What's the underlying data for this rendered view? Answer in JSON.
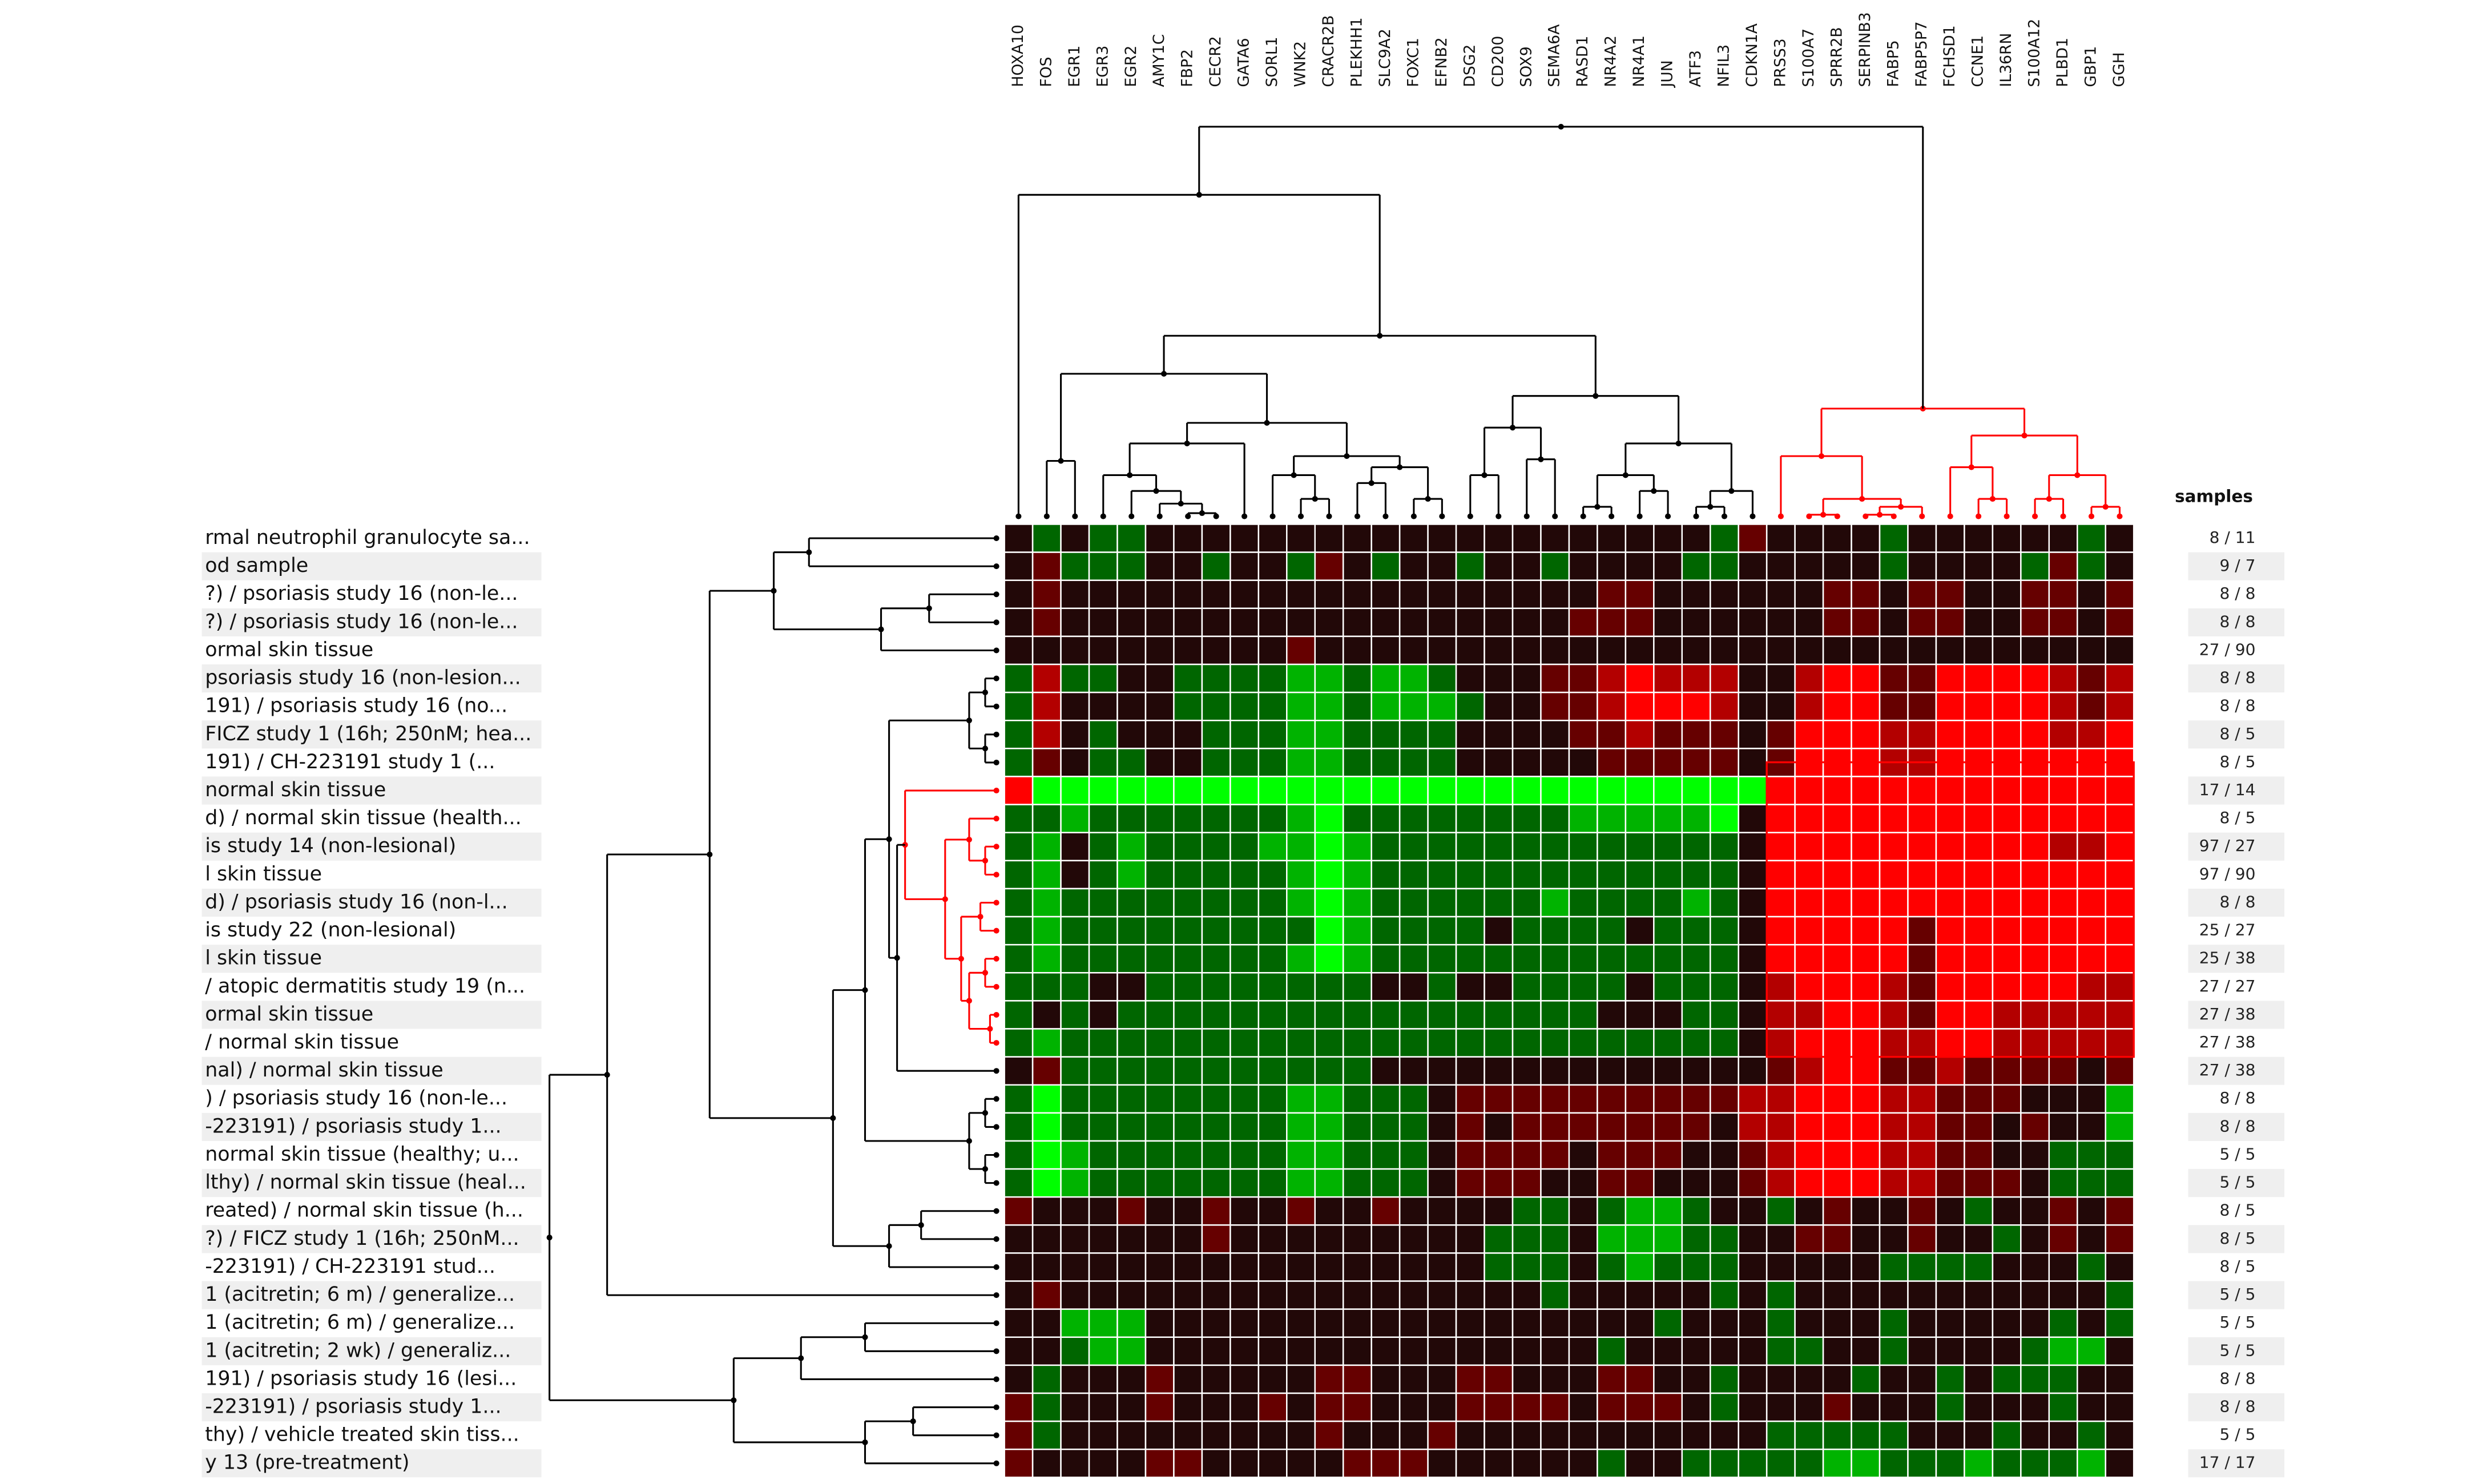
{
  "chart_data": {
    "type": "heatmap",
    "categories": [
      "HOXA10",
      "FOS",
      "EGR1",
      "EGR3",
      "EGR2",
      "AMY1C",
      "FBP2",
      "CECR2",
      "GATA6",
      "SORL1",
      "WNK2",
      "CRACR2B",
      "PLEKHH1",
      "SLC9A2",
      "FOXC1",
      "EFNB2",
      "DSG2",
      "CD200",
      "SOX9",
      "SEMA6A",
      "RASD1",
      "NR4A2",
      "NR4A1",
      "JUN",
      "ATF3",
      "NFIL3",
      "CDKN1A",
      "PRSS3",
      "S100A7",
      "SPRR2B",
      "SERPINB3",
      "FABP5",
      "FABP5P7",
      "FCHSD1",
      "CCNE1",
      "IL36RN",
      "S100A12",
      "PLBD1",
      "GBP1",
      "GGH"
    ],
    "rows": [
      "rmal neutrophil granulocyte sa...",
      "od sample",
      "?) / psoriasis study 16 (non-le...",
      "?) / psoriasis study 16 (non-le...",
      "ormal skin tissue",
      "psoriasis study 16 (non-lesion...",
      "191) / psoriasis study 16 (no...",
      "FICZ study 1 (16h; 250nM; hea...",
      "191) / CH-223191 study 1 (...",
      "normal skin tissue",
      "d) / normal skin tissue (health...",
      "is study 14 (non-lesional)",
      "l skin tissue",
      "d) / psoriasis study 16 (non-l...",
      "is study 22 (non-lesional)",
      "l skin tissue",
      "/ atopic dermatitis study 19 (n...",
      "ormal skin tissue",
      "/ normal skin tissue",
      "nal) / normal skin tissue",
      ") / psoriasis study 16 (non-le...",
      "-223191) / psoriasis study 1...",
      "normal skin tissue (healthy; u...",
      "lthy) / normal skin tissue (heal...",
      "reated) / normal skin tissue (h...",
      "?) / FICZ study 1 (16h; 250nM...",
      "-223191) / CH-223191 stud...",
      "1 (acitretin; 6 m) / generalize...",
      "1 (acitretin; 6 m) / generalize...",
      "1 (acitretin; 2 wk) / generaliz...",
      "191) / psoriasis study 16 (lesi...",
      "-223191) / psoriasis study 1...",
      "thy) / vehicle treated skin tiss...",
      "y 13 (pre-treatment)"
    ],
    "samples_header": "samples",
    "samples": [
      "8 / 11",
      "9 / 7",
      "8 / 8",
      "8 / 8",
      "27 / 90",
      "8 / 8",
      "8 / 8",
      "8 / 5",
      "8 / 5",
      "17 / 14",
      "8 / 5",
      "97 / 27",
      "97 / 90",
      "8 / 8",
      "25 / 27",
      "25 / 38",
      "27 / 27",
      "27 / 38",
      "27 / 38",
      "27 / 38",
      "8 / 8",
      "8 / 8",
      "5 / 5",
      "5 / 5",
      "8 / 5",
      "8 / 5",
      "8 / 5",
      "5 / 5",
      "5 / 5",
      "5 / 5",
      "8 / 8",
      "8 / 8",
      "5 / 5",
      "17 / 17"
    ],
    "zlim": [
      -3,
      3
    ],
    "colors": {
      "negative": "#00ff00",
      "positive": "#ff0000"
    },
    "values": [
      [
        0,
        -1,
        0,
        -1,
        -1,
        0,
        0,
        0,
        0,
        0,
        0,
        0,
        0,
        0,
        0,
        0,
        0,
        0,
        0,
        0,
        0,
        0,
        0,
        0,
        0,
        -1,
        1,
        0,
        0,
        0,
        0,
        -1,
        0,
        0,
        0,
        0,
        0,
        0,
        -1,
        0
      ],
      [
        0,
        1,
        -1,
        -1,
        -1,
        0,
        0,
        -1,
        0,
        0,
        -1,
        1,
        0,
        -1,
        0,
        0,
        -1,
        0,
        0,
        -1,
        0,
        0,
        0,
        0,
        -1,
        -1,
        0,
        0,
        0,
        0,
        0,
        -1,
        0,
        0,
        0,
        0,
        -1,
        1,
        -1,
        0
      ],
      [
        0,
        1,
        0,
        0,
        0,
        0,
        0,
        0,
        0,
        0,
        0,
        0,
        0,
        0,
        0,
        0,
        0,
        0,
        0,
        0,
        0,
        1,
        1,
        0,
        0,
        0,
        0,
        0,
        0,
        1,
        1,
        0,
        1,
        1,
        0,
        0,
        1,
        1,
        0,
        1
      ],
      [
        0,
        1,
        0,
        0,
        0,
        0,
        0,
        0,
        0,
        0,
        0,
        0,
        0,
        0,
        0,
        0,
        0,
        0,
        0,
        0,
        1,
        1,
        1,
        0,
        0,
        0,
        0,
        0,
        0,
        1,
        1,
        0,
        1,
        1,
        0,
        0,
        1,
        1,
        0,
        1
      ],
      [
        0,
        0,
        0,
        0,
        0,
        0,
        0,
        0,
        0,
        0,
        1,
        0,
        0,
        0,
        0,
        0,
        0,
        0,
        0,
        0,
        0,
        0,
        0,
        0,
        0,
        0,
        0,
        0,
        0,
        0,
        0,
        0,
        0,
        0,
        0,
        0,
        0,
        0,
        0,
        0
      ],
      [
        -1,
        2,
        -1,
        -1,
        0,
        0,
        -1,
        -1,
        -1,
        -1,
        -2,
        -2,
        -1,
        -2,
        -2,
        -1,
        0,
        0,
        0,
        1,
        1,
        2,
        3,
        2,
        2,
        2,
        0,
        0,
        2,
        3,
        3,
        1,
        1,
        3,
        3,
        3,
        3,
        2,
        1,
        2
      ],
      [
        -1,
        2,
        0,
        0,
        0,
        0,
        -1,
        -1,
        -1,
        -1,
        -2,
        -2,
        -1,
        -2,
        -2,
        -2,
        -1,
        0,
        0,
        1,
        1,
        2,
        3,
        3,
        3,
        2,
        0,
        0,
        2,
        3,
        3,
        1,
        1,
        3,
        3,
        3,
        3,
        2,
        1,
        2
      ],
      [
        -1,
        2,
        0,
        -1,
        0,
        0,
        0,
        -1,
        -1,
        -1,
        -2,
        -2,
        -1,
        -1,
        -1,
        -1,
        0,
        0,
        0,
        0,
        1,
        1,
        2,
        1,
        1,
        1,
        0,
        1,
        3,
        3,
        3,
        2,
        2,
        3,
        3,
        3,
        3,
        2,
        2,
        3
      ],
      [
        -1,
        1,
        0,
        -1,
        -1,
        0,
        0,
        -1,
        -1,
        -1,
        -2,
        -2,
        -1,
        -1,
        -1,
        -1,
        0,
        0,
        0,
        0,
        0,
        1,
        1,
        1,
        1,
        1,
        0,
        1,
        3,
        3,
        3,
        2,
        2,
        3,
        3,
        3,
        3,
        3,
        3,
        3
      ],
      [
        3,
        -3,
        -3,
        -3,
        -3,
        -3,
        -3,
        -3,
        -3,
        -3,
        -3,
        -3,
        -3,
        -3,
        -3,
        -3,
        -3,
        -3,
        -3,
        -3,
        -3,
        -3,
        -3,
        -3,
        -3,
        -3,
        -3,
        3,
        3,
        3,
        3,
        3,
        3,
        3,
        3,
        3,
        3,
        3,
        3,
        3
      ],
      [
        -1,
        -1,
        -2,
        -1,
        -1,
        -1,
        -1,
        -1,
        -1,
        -1,
        -2,
        -3,
        -1,
        -1,
        -1,
        -1,
        -1,
        -1,
        -1,
        -1,
        -2,
        -2,
        -2,
        -2,
        -2,
        -3,
        0,
        3,
        3,
        3,
        3,
        3,
        3,
        3,
        3,
        3,
        3,
        3,
        3,
        3
      ],
      [
        -1,
        -2,
        0,
        -1,
        -2,
        -1,
        -1,
        -1,
        -1,
        -2,
        -2,
        -3,
        -2,
        -1,
        -1,
        -1,
        -1,
        -1,
        -1,
        -1,
        -1,
        -1,
        -1,
        -1,
        -1,
        -1,
        0,
        3,
        3,
        3,
        3,
        3,
        3,
        3,
        3,
        3,
        3,
        2,
        2,
        3
      ],
      [
        -1,
        -2,
        0,
        -1,
        -2,
        -1,
        -1,
        -1,
        -1,
        -1,
        -2,
        -3,
        -2,
        -1,
        -1,
        -1,
        -1,
        -1,
        -1,
        -1,
        -1,
        -1,
        -1,
        -1,
        -1,
        -1,
        0,
        3,
        3,
        3,
        3,
        3,
        3,
        3,
        3,
        3,
        3,
        3,
        3,
        3
      ],
      [
        -1,
        -2,
        -1,
        -1,
        -1,
        -1,
        -1,
        -1,
        -1,
        -1,
        -2,
        -3,
        -2,
        -1,
        -1,
        -1,
        -1,
        -1,
        -1,
        -2,
        -1,
        -1,
        -1,
        -1,
        -2,
        -1,
        0,
        3,
        3,
        3,
        3,
        3,
        3,
        3,
        3,
        3,
        3,
        3,
        3,
        3
      ],
      [
        -1,
        -2,
        -1,
        -1,
        -1,
        -1,
        -1,
        -1,
        -1,
        -1,
        -1,
        -3,
        -2,
        -1,
        -1,
        -1,
        -1,
        0,
        -1,
        -1,
        -1,
        -1,
        0,
        -1,
        -1,
        -1,
        0,
        3,
        3,
        3,
        3,
        3,
        1,
        3,
        3,
        3,
        3,
        3,
        3,
        3
      ],
      [
        -1,
        -2,
        -1,
        -1,
        -1,
        -1,
        -1,
        -1,
        -1,
        -1,
        -2,
        -3,
        -2,
        -1,
        -1,
        -1,
        -1,
        -1,
        -1,
        -1,
        -1,
        -1,
        -1,
        -1,
        -1,
        -1,
        0,
        3,
        3,
        3,
        3,
        3,
        1,
        3,
        3,
        3,
        3,
        3,
        3,
        3
      ],
      [
        -1,
        -1,
        -1,
        0,
        0,
        -1,
        -1,
        -1,
        -1,
        -1,
        -1,
        -1,
        -1,
        0,
        0,
        -1,
        0,
        0,
        -1,
        -1,
        -1,
        -1,
        0,
        -1,
        -1,
        -1,
        0,
        2,
        3,
        3,
        3,
        2,
        1,
        3,
        3,
        3,
        3,
        3,
        2,
        2
      ],
      [
        -1,
        0,
        -1,
        0,
        -1,
        -1,
        -1,
        -1,
        -1,
        -1,
        -1,
        -1,
        -1,
        -1,
        -1,
        -1,
        -1,
        -1,
        -1,
        -1,
        -1,
        0,
        0,
        0,
        -1,
        -1,
        0,
        2,
        2,
        3,
        3,
        2,
        1,
        3,
        3,
        2,
        2,
        2,
        2,
        2
      ],
      [
        -1,
        -2,
        -1,
        -1,
        -1,
        -1,
        -1,
        -1,
        -1,
        -1,
        -1,
        -1,
        -1,
        -1,
        -1,
        -1,
        -1,
        -1,
        -1,
        -1,
        -1,
        -1,
        -1,
        -1,
        -1,
        -1,
        0,
        2,
        3,
        3,
        3,
        2,
        2,
        3,
        3,
        2,
        2,
        2,
        2,
        2
      ],
      [
        0,
        1,
        -1,
        -1,
        -1,
        -1,
        -1,
        -1,
        -1,
        -1,
        -1,
        -1,
        -1,
        0,
        0,
        0,
        0,
        0,
        0,
        0,
        0,
        0,
        0,
        0,
        0,
        0,
        0,
        1,
        2,
        3,
        3,
        1,
        1,
        2,
        1,
        1,
        1,
        1,
        0,
        1
      ],
      [
        -1,
        -3,
        -1,
        -1,
        -1,
        -1,
        -1,
        -1,
        -1,
        -1,
        -2,
        -2,
        -1,
        -1,
        -1,
        0,
        1,
        1,
        1,
        1,
        1,
        1,
        1,
        1,
        1,
        1,
        2,
        2,
        3,
        3,
        3,
        2,
        2,
        1,
        1,
        1,
        0,
        0,
        0,
        -2
      ],
      [
        -1,
        -3,
        -1,
        -1,
        -1,
        -1,
        -1,
        -1,
        -1,
        -1,
        -2,
        -2,
        -1,
        -1,
        -1,
        0,
        1,
        0,
        1,
        1,
        1,
        1,
        1,
        1,
        1,
        0,
        2,
        2,
        3,
        3,
        3,
        2,
        2,
        1,
        1,
        0,
        1,
        0,
        0,
        -2
      ],
      [
        -1,
        -3,
        -2,
        -1,
        -1,
        -1,
        -1,
        -1,
        -1,
        -1,
        -2,
        -2,
        -1,
        -1,
        -1,
        0,
        1,
        1,
        1,
        1,
        0,
        1,
        1,
        1,
        0,
        0,
        1,
        2,
        3,
        3,
        3,
        2,
        2,
        1,
        1,
        0,
        0,
        -1,
        -1,
        -1
      ],
      [
        -1,
        -3,
        -2,
        -1,
        -1,
        -1,
        -1,
        -1,
        -1,
        -1,
        -2,
        -2,
        -1,
        -1,
        -1,
        0,
        1,
        1,
        1,
        0,
        0,
        1,
        1,
        0,
        0,
        0,
        1,
        2,
        3,
        3,
        3,
        2,
        2,
        1,
        1,
        1,
        0,
        -1,
        -1,
        -1
      ],
      [
        1,
        0,
        0,
        0,
        1,
        0,
        0,
        1,
        0,
        0,
        1,
        0,
        0,
        1,
        0,
        0,
        0,
        0,
        -1,
        -1,
        0,
        -1,
        -2,
        -2,
        -1,
        0,
        0,
        -1,
        0,
        1,
        0,
        0,
        1,
        0,
        -1,
        0,
        0,
        1,
        0,
        1
      ],
      [
        0,
        0,
        0,
        0,
        0,
        0,
        0,
        1,
        0,
        0,
        0,
        0,
        0,
        0,
        0,
        0,
        0,
        -1,
        -1,
        -1,
        0,
        -2,
        -2,
        -2,
        -1,
        -1,
        0,
        0,
        1,
        1,
        0,
        0,
        1,
        0,
        0,
        -1,
        0,
        1,
        0,
        1
      ],
      [
        0,
        0,
        0,
        0,
        0,
        0,
        0,
        0,
        0,
        0,
        0,
        0,
        0,
        0,
        0,
        0,
        0,
        -1,
        -1,
        -1,
        0,
        -1,
        -2,
        -1,
        -1,
        -1,
        0,
        0,
        0,
        0,
        0,
        -1,
        -1,
        -1,
        -1,
        0,
        0,
        0,
        -1,
        0
      ],
      [
        0,
        1,
        0,
        0,
        0,
        0,
        0,
        0,
        0,
        0,
        0,
        0,
        0,
        0,
        0,
        0,
        0,
        0,
        0,
        -1,
        0,
        0,
        0,
        0,
        0,
        -1,
        0,
        -1,
        0,
        0,
        0,
        0,
        0,
        0,
        0,
        0,
        0,
        0,
        0,
        -1
      ],
      [
        0,
        0,
        -2,
        -2,
        -2,
        0,
        0,
        0,
        0,
        0,
        0,
        0,
        0,
        0,
        0,
        0,
        0,
        0,
        0,
        0,
        0,
        0,
        0,
        -1,
        0,
        0,
        0,
        -1,
        0,
        0,
        0,
        -1,
        0,
        0,
        0,
        0,
        0,
        -1,
        0,
        -1
      ],
      [
        0,
        0,
        -1,
        -2,
        -2,
        0,
        0,
        0,
        0,
        0,
        0,
        0,
        0,
        0,
        0,
        0,
        0,
        0,
        0,
        0,
        0,
        -1,
        0,
        0,
        0,
        0,
        0,
        -1,
        -1,
        0,
        0,
        -1,
        0,
        0,
        0,
        0,
        -1,
        -2,
        -2,
        0
      ],
      [
        0,
        -1,
        0,
        0,
        0,
        1,
        0,
        0,
        0,
        0,
        0,
        1,
        1,
        0,
        0,
        0,
        1,
        1,
        0,
        0,
        0,
        1,
        1,
        0,
        0,
        -1,
        0,
        0,
        0,
        0,
        -1,
        0,
        0,
        -1,
        0,
        -1,
        -1,
        -1,
        0,
        0
      ],
      [
        1,
        -1,
        0,
        0,
        0,
        1,
        0,
        0,
        0,
        1,
        0,
        1,
        1,
        0,
        0,
        0,
        1,
        1,
        1,
        1,
        0,
        1,
        1,
        1,
        0,
        -1,
        0,
        0,
        0,
        1,
        0,
        0,
        0,
        -1,
        0,
        0,
        0,
        -1,
        0,
        0
      ],
      [
        1,
        -1,
        0,
        0,
        0,
        0,
        0,
        0,
        0,
        0,
        0,
        1,
        0,
        0,
        0,
        1,
        0,
        0,
        0,
        0,
        0,
        0,
        0,
        0,
        0,
        0,
        0,
        -1,
        -1,
        -1,
        -1,
        -1,
        0,
        0,
        0,
        -1,
        0,
        0,
        -1,
        0
      ],
      [
        1,
        0,
        0,
        0,
        0,
        1,
        1,
        0,
        0,
        0,
        0,
        0,
        1,
        1,
        1,
        0,
        0,
        0,
        0,
        0,
        0,
        -1,
        0,
        0,
        -1,
        -1,
        -1,
        -1,
        -1,
        -2,
        -2,
        -1,
        -1,
        -1,
        -2,
        -1,
        -1,
        -1,
        -2,
        0
      ]
    ]
  }
}
